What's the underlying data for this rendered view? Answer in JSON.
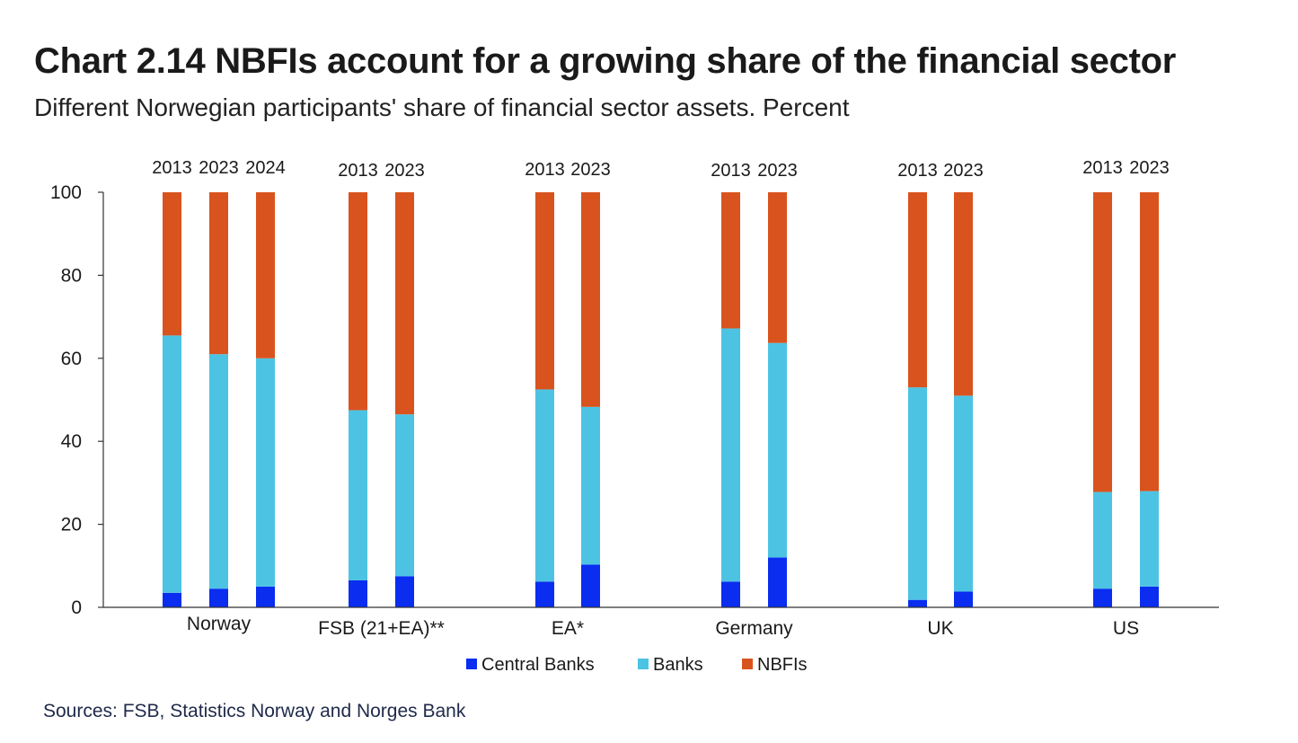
{
  "title": "Chart 2.14 NBFIs account for a growing share of the financial sector",
  "subtitle": "Different Norwegian participants' share of financial sector assets. Percent",
  "source": "Sources: FSB, Statistics Norway and Norges Bank",
  "colors": {
    "Central Banks": "#0a2df0",
    "Banks": "#4dc3e3",
    "NBFIs": "#d9531e"
  },
  "chart_data": {
    "type": "bar",
    "stacked": true,
    "ylim": [
      0,
      100
    ],
    "yticks": [
      0,
      20,
      40,
      60,
      80,
      100
    ],
    "legend_position": "bottom",
    "legend": [
      "Central Banks",
      "Banks",
      "NBFIs"
    ],
    "groups": [
      {
        "label": "Norway",
        "bars": [
          {
            "year": "2013",
            "central_banks": 3.5,
            "banks": 62,
            "nbfis": 34.5
          },
          {
            "year": "2023",
            "central_banks": 4.5,
            "banks": 56.5,
            "nbfis": 39
          },
          {
            "year": "2024",
            "central_banks": 5,
            "banks": 55,
            "nbfis": 40
          }
        ]
      },
      {
        "label": "FSB (21+EA)**",
        "bars": [
          {
            "year": "2013",
            "central_banks": 6.5,
            "banks": 41,
            "nbfis": 52.5
          },
          {
            "year": "2023",
            "central_banks": 7.5,
            "banks": 39,
            "nbfis": 53.5
          }
        ]
      },
      {
        "label": "EA*",
        "bars": [
          {
            "year": "2013",
            "central_banks": 6.2,
            "banks": 46.3,
            "nbfis": 47.5
          },
          {
            "year": "2023",
            "central_banks": 10.3,
            "banks": 38,
            "nbfis": 51.7
          }
        ]
      },
      {
        "label": "Germany",
        "bars": [
          {
            "year": "2013",
            "central_banks": 6.2,
            "banks": 61,
            "nbfis": 32.8
          },
          {
            "year": "2023",
            "central_banks": 12,
            "banks": 51.7,
            "nbfis": 36.3
          }
        ]
      },
      {
        "label": "UK",
        "bars": [
          {
            "year": "2013",
            "central_banks": 1.8,
            "banks": 51.2,
            "nbfis": 47
          },
          {
            "year": "2023",
            "central_banks": 3.8,
            "banks": 47.2,
            "nbfis": 49
          }
        ]
      },
      {
        "label": "US",
        "bars": [
          {
            "year": "2013",
            "central_banks": 4.5,
            "banks": 23.3,
            "nbfis": 72.2
          },
          {
            "year": "2023",
            "central_banks": 5,
            "banks": 23,
            "nbfis": 72
          }
        ]
      }
    ]
  }
}
